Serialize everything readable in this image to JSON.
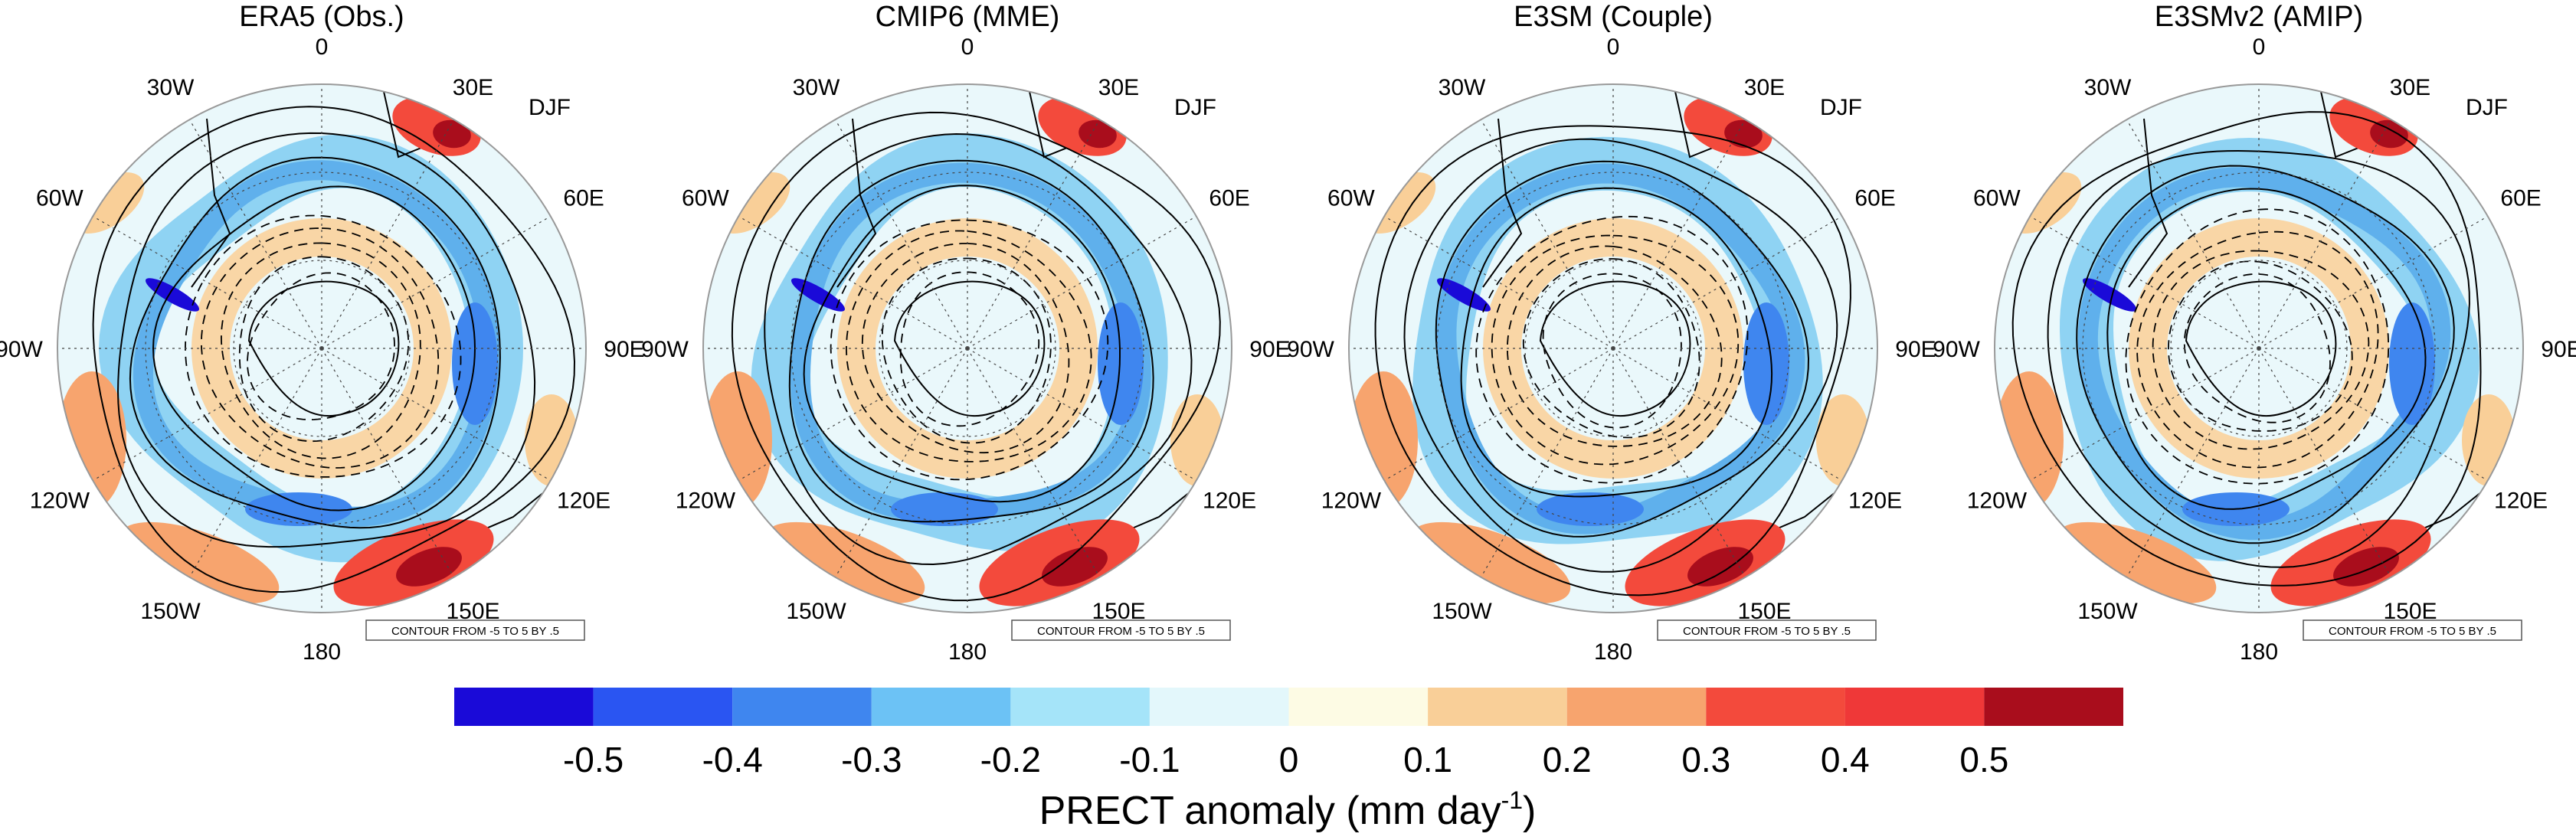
{
  "figure": {
    "season": "DJF",
    "contour_note": "CONTOUR FROM -5 TO 5 BY .5",
    "longitude_labels": [
      "0",
      "30E",
      "60E",
      "90E",
      "120E",
      "150E",
      "180",
      "150W",
      "120W",
      "90W",
      "60W",
      "30W"
    ],
    "panels": [
      {
        "title": "ERA5 (Obs.)"
      },
      {
        "title": "CMIP6 (MME)"
      },
      {
        "title": "E3SM (Couple)"
      },
      {
        "title": "E3SMv2 (AMIP)"
      }
    ]
  },
  "colorbar": {
    "title_main": "PRECT anomaly (mm day",
    "title_sup": "-1",
    "title_close": ")",
    "tick_labels": [
      "-0.5",
      "-0.4",
      "-0.3",
      "-0.2",
      "-0.1",
      "0",
      "0.1",
      "0.2",
      "0.3",
      "0.4",
      "0.5"
    ],
    "colors": [
      "#1a0ad8",
      "#2a55f2",
      "#3f86ef",
      "#6cc2f5",
      "#a5e4f9",
      "#e3f7fb",
      "#fdfbe4",
      "#f9cf98",
      "#f7a46e",
      "#f34a3c",
      "#ef3838",
      "#a90d1c"
    ]
  }
}
